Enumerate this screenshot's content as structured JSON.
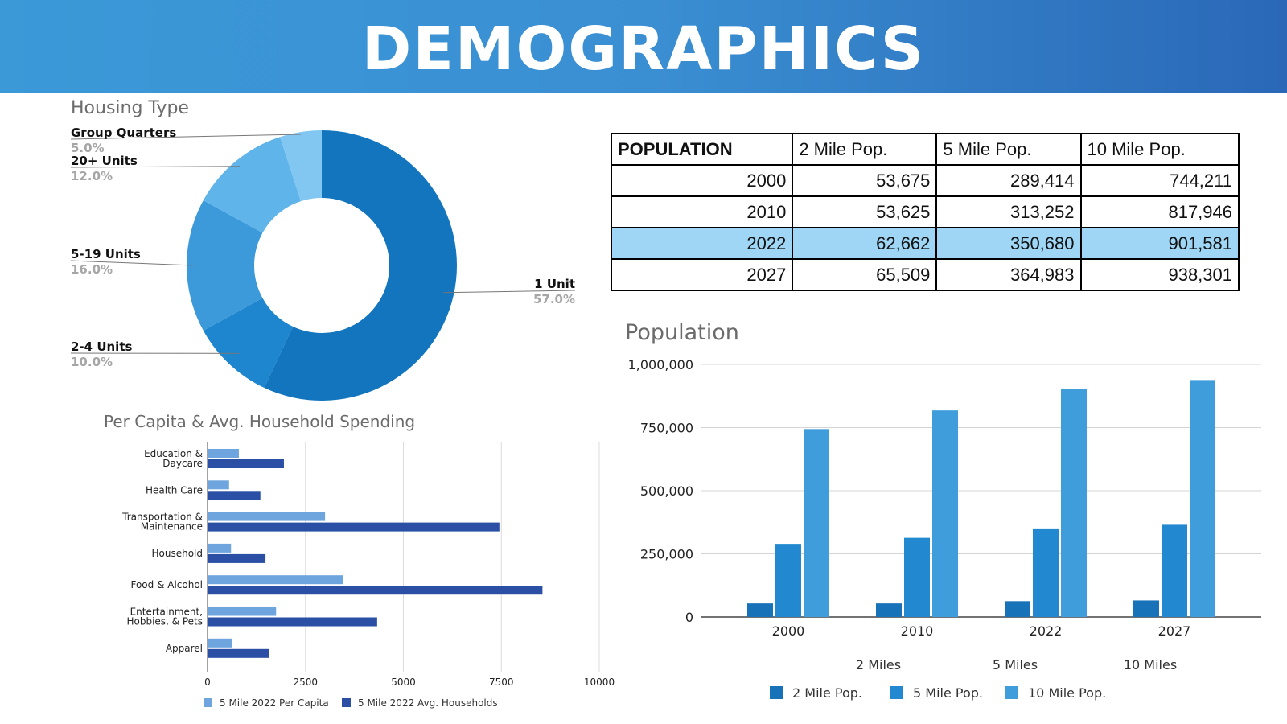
{
  "page": {
    "title": "DEMOGRAPHICS"
  },
  "colors": {
    "header_start": "#3b99d8",
    "header_end": "#2a68b7",
    "highlight_row": "#9fd6f5"
  },
  "chart_data": [
    {
      "type": "pie",
      "title": "Housing Type",
      "donut": true,
      "slices": [
        {
          "label": "1 Unit",
          "value": 57.0,
          "pct_label": "57.0%",
          "color": "#1275bd"
        },
        {
          "label": "2-4 Units",
          "value": 10.0,
          "pct_label": "10.0%",
          "color": "#1d86ce"
        },
        {
          "label": "5-19 Units",
          "value": 16.0,
          "pct_label": "16.0%",
          "color": "#3c9adb"
        },
        {
          "label": "20+ Units",
          "value": 12.0,
          "pct_label": "12.0%",
          "color": "#5fb4ea"
        },
        {
          "label": "Group Quarters",
          "value": 5.0,
          "pct_label": "5.0%",
          "color": "#82c6f2"
        }
      ]
    },
    {
      "type": "table",
      "headers": [
        "POPULATION",
        "2 Mile Pop.",
        "5 Mile Pop.",
        "10 Mile Pop."
      ],
      "rows": [
        {
          "year": "2000",
          "values": [
            "53,675",
            "289,414",
            "744,211"
          ],
          "highlight": false
        },
        {
          "year": "2010",
          "values": [
            "53,625",
            "313,252",
            "817,946"
          ],
          "highlight": false
        },
        {
          "year": "2022",
          "values": [
            "62,662",
            "350,680",
            "901,581"
          ],
          "highlight": true
        },
        {
          "year": "2027",
          "values": [
            "65,509",
            "364,983",
            "938,301"
          ],
          "highlight": false
        }
      ]
    },
    {
      "type": "bar",
      "title": "Population",
      "categories": [
        "2000",
        "2010",
        "2022",
        "2027"
      ],
      "series": [
        {
          "name": "2 Mile Pop.",
          "values": [
            53675,
            53625,
            62662,
            65509
          ],
          "color": "#1772b8"
        },
        {
          "name": "5 Mile Pop.",
          "values": [
            289414,
            313252,
            350680,
            364983
          ],
          "color": "#2289d1"
        },
        {
          "name": "10 Mile Pop.",
          "values": [
            744211,
            817946,
            901581,
            938301
          ],
          "color": "#3f9ddc"
        }
      ],
      "ylim": [
        0,
        1000000
      ],
      "yticks": [
        0,
        250000,
        500000,
        750000,
        1000000
      ],
      "ytick_labels": [
        "0",
        "250,000",
        "500,000",
        "750,000",
        "1,000,000"
      ],
      "sublabels": [
        "2 Miles",
        "5 Miles",
        "10 Miles"
      ],
      "grid": true,
      "legend": "bottom"
    },
    {
      "type": "bar",
      "orientation": "horizontal",
      "title": "Per Capita & Avg. Household Spending",
      "categories": [
        [
          "Education &",
          "Daycare"
        ],
        [
          "Health Care"
        ],
        [
          "Transportation &",
          "Maintenance"
        ],
        [
          "Household"
        ],
        [
          "Food & Alcohol"
        ],
        [
          "Entertainment,",
          "Hobbies, & Pets"
        ],
        [
          "Apparel"
        ]
      ],
      "series": [
        {
          "name": "5 Mile 2022 Per Capita",
          "values": [
            800,
            550,
            3000,
            600,
            3450,
            1750,
            620
          ],
          "color": "#6ea5df"
        },
        {
          "name": "5 Mile 2022 Avg. Households",
          "values": [
            1950,
            1350,
            7450,
            1480,
            8550,
            4330,
            1580
          ],
          "color": "#2a4fa4"
        }
      ],
      "xlim": [
        0,
        10000
      ],
      "xticks": [
        0,
        2500,
        5000,
        7500,
        10000
      ],
      "xtick_labels": [
        "0",
        "2500",
        "5000",
        "7500",
        "10000"
      ],
      "grid": true,
      "legend": "bottom"
    }
  ]
}
